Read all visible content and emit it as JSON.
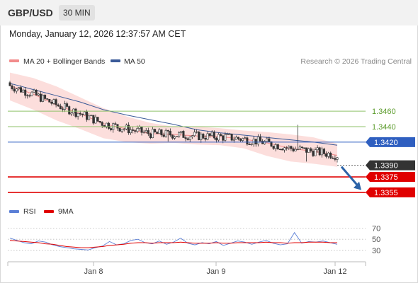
{
  "header": {
    "symbol": "GBP/USD",
    "timeframe": "30 MIN"
  },
  "timestamp": "Monday, January 12, 2026 12:37:57 AM CET",
  "legend": [
    {
      "label": "MA 20 + Bollinger Bands",
      "color": "#f28b8b"
    },
    {
      "label": "MA 50",
      "color": "#3a5a98"
    }
  ],
  "attribution": "Research © 2026 Trading Central",
  "colors": {
    "resistance": "#8fc26a",
    "pivot": "#2f5fc0",
    "support": "#e00000",
    "current": "#333333",
    "band_fill": "#fcd8d6",
    "ma20": "#f28b8b",
    "ma50": "#3a5a98",
    "candle": "#333333",
    "arrow": "#2c63a8",
    "rsi": "#5b7fd6",
    "rsi_ma": "#e00000"
  },
  "chart_data": [
    {
      "type": "candlestick",
      "title": "GBP/USD 30 MIN",
      "x_ticks": [
        "Jan 8",
        "Jan 9",
        "Jan 12"
      ],
      "ylim": [
        1.3343,
        1.3516
      ],
      "ma20": [
        1.3493,
        1.3482,
        1.3468,
        1.3457,
        1.3444,
        1.3437,
        1.3431,
        1.343,
        1.3428,
        1.3427,
        1.3424,
        1.3419,
        1.3412,
        1.3408,
        1.3403
      ],
      "ma50": [
        1.3496,
        1.3488,
        1.348,
        1.3472,
        1.3462,
        1.3455,
        1.3449,
        1.3443,
        1.3436,
        1.3432,
        1.3429,
        1.3426,
        1.3423,
        1.342,
        1.3416
      ],
      "bb_upper": [
        1.351,
        1.3503,
        1.3492,
        1.3478,
        1.3464,
        1.3453,
        1.3445,
        1.344,
        1.344,
        1.3438,
        1.3435,
        1.3433,
        1.343,
        1.3426,
        1.3418
      ],
      "bb_lower": [
        1.3474,
        1.3462,
        1.3448,
        1.3437,
        1.3425,
        1.342,
        1.3418,
        1.3419,
        1.3417,
        1.3416,
        1.3412,
        1.3402,
        1.3395,
        1.3392,
        1.3388
      ],
      "levels": [
        {
          "label": "1.3460",
          "value": 1.346,
          "kind": "resistance"
        },
        {
          "label": "1.3440",
          "value": 1.344,
          "kind": "resistance"
        },
        {
          "label": "1.3420",
          "value": 1.342,
          "kind": "pivot"
        },
        {
          "label": "1.3390",
          "value": 1.339,
          "kind": "current"
        },
        {
          "label": "1.3375",
          "value": 1.3375,
          "kind": "support"
        },
        {
          "label": "1.3355",
          "value": 1.3355,
          "kind": "support"
        }
      ]
    },
    {
      "type": "line",
      "legend": [
        {
          "label": "RSI",
          "color": "#5b7fd6"
        },
        {
          "label": "9MA",
          "color": "#e00000"
        }
      ],
      "y_ticks": [
        "70",
        "50",
        "30"
      ],
      "ylim": [
        20,
        78
      ],
      "rsi": [
        52,
        48,
        44,
        42,
        47,
        45,
        40,
        37,
        35,
        33,
        32,
        31,
        35,
        38,
        46,
        40,
        42,
        48,
        50,
        44,
        42,
        47,
        41,
        45,
        52,
        43,
        40,
        44,
        42,
        46,
        39,
        43,
        47,
        45,
        41,
        45,
        48,
        43,
        40,
        42,
        62,
        43,
        46,
        45,
        47,
        44,
        41
      ],
      "rsi_ma": [
        48,
        47,
        46,
        45,
        44,
        42,
        41,
        39,
        37,
        36,
        35,
        35,
        36,
        37,
        39,
        40,
        41,
        43,
        44,
        44,
        43,
        44,
        44,
        44,
        45,
        44,
        43,
        43,
        43,
        44,
        43,
        43,
        44,
        44,
        44,
        44,
        45,
        44,
        44,
        43,
        44,
        44,
        45,
        45,
        45,
        44,
        44
      ]
    }
  ]
}
